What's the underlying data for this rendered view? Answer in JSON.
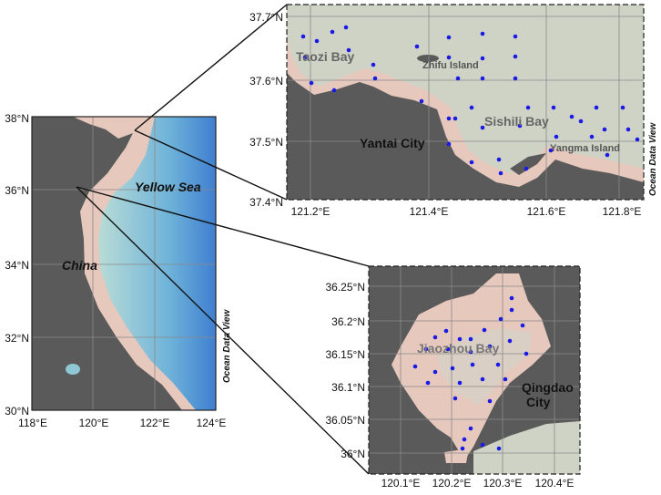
{
  "maps": [
    {
      "x_tick_labels": [
        "118°E",
        "120°E",
        "122°E",
        "124°E"
      ],
      "y_tick_labels": [
        "38°N",
        "36°N",
        "34°N",
        "32°N",
        "30°N"
      ],
      "labels": [
        "Yellow Sea",
        "China"
      ],
      "watermark": "Ocean Data View"
    },
    {
      "x_tick_labels": [
        "121.2°E",
        "121.4°E",
        "121.6°E",
        "121.8°E"
      ],
      "y_tick_labels": [
        "37.7°N",
        "37.6°N",
        "37.5°N",
        "37.4°N"
      ],
      "labels": [
        "Taozi Bay",
        "Zhifu Island",
        "Yantai City",
        "Sishili Bay",
        "Yangma Island"
      ],
      "watermark": "Ocean Data View"
    },
    {
      "x_tick_labels": [
        "120.1°E",
        "120.2°E",
        "120.3°E",
        "120.4°E"
      ],
      "y_tick_labels": [
        "36.25°N",
        "36.2°N",
        "36.15°N",
        "36.1°N",
        "36.05°N",
        "36°N"
      ],
      "labels": [
        "Jiaozhou Bay",
        "Qingdao",
        "City"
      ]
    }
  ]
}
